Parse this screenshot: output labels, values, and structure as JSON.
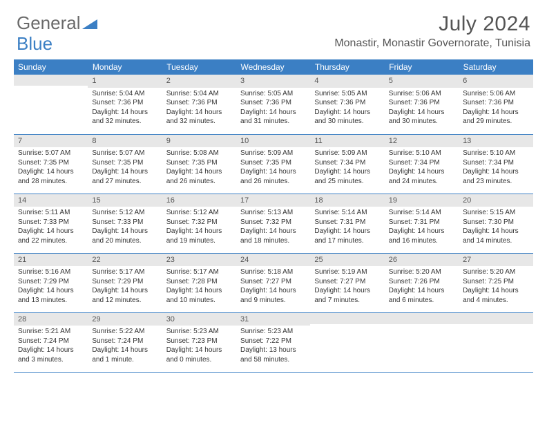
{
  "brand": {
    "part1": "General",
    "part2": "Blue"
  },
  "title": "July 2024",
  "location": "Monastir, Monastir Governorate, Tunisia",
  "accent_color": "#3b7fc4",
  "daynum_bg": "#e7e7e7",
  "weekdays": [
    "Sunday",
    "Monday",
    "Tuesday",
    "Wednesday",
    "Thursday",
    "Friday",
    "Saturday"
  ],
  "weeks": [
    [
      {
        "n": "",
        "sr": "",
        "ss": "",
        "dl": ""
      },
      {
        "n": "1",
        "sr": "Sunrise: 5:04 AM",
        "ss": "Sunset: 7:36 PM",
        "dl": "Daylight: 14 hours and 32 minutes."
      },
      {
        "n": "2",
        "sr": "Sunrise: 5:04 AM",
        "ss": "Sunset: 7:36 PM",
        "dl": "Daylight: 14 hours and 32 minutes."
      },
      {
        "n": "3",
        "sr": "Sunrise: 5:05 AM",
        "ss": "Sunset: 7:36 PM",
        "dl": "Daylight: 14 hours and 31 minutes."
      },
      {
        "n": "4",
        "sr": "Sunrise: 5:05 AM",
        "ss": "Sunset: 7:36 PM",
        "dl": "Daylight: 14 hours and 30 minutes."
      },
      {
        "n": "5",
        "sr": "Sunrise: 5:06 AM",
        "ss": "Sunset: 7:36 PM",
        "dl": "Daylight: 14 hours and 30 minutes."
      },
      {
        "n": "6",
        "sr": "Sunrise: 5:06 AM",
        "ss": "Sunset: 7:36 PM",
        "dl": "Daylight: 14 hours and 29 minutes."
      }
    ],
    [
      {
        "n": "7",
        "sr": "Sunrise: 5:07 AM",
        "ss": "Sunset: 7:35 PM",
        "dl": "Daylight: 14 hours and 28 minutes."
      },
      {
        "n": "8",
        "sr": "Sunrise: 5:07 AM",
        "ss": "Sunset: 7:35 PM",
        "dl": "Daylight: 14 hours and 27 minutes."
      },
      {
        "n": "9",
        "sr": "Sunrise: 5:08 AM",
        "ss": "Sunset: 7:35 PM",
        "dl": "Daylight: 14 hours and 26 minutes."
      },
      {
        "n": "10",
        "sr": "Sunrise: 5:09 AM",
        "ss": "Sunset: 7:35 PM",
        "dl": "Daylight: 14 hours and 26 minutes."
      },
      {
        "n": "11",
        "sr": "Sunrise: 5:09 AM",
        "ss": "Sunset: 7:34 PM",
        "dl": "Daylight: 14 hours and 25 minutes."
      },
      {
        "n": "12",
        "sr": "Sunrise: 5:10 AM",
        "ss": "Sunset: 7:34 PM",
        "dl": "Daylight: 14 hours and 24 minutes."
      },
      {
        "n": "13",
        "sr": "Sunrise: 5:10 AM",
        "ss": "Sunset: 7:34 PM",
        "dl": "Daylight: 14 hours and 23 minutes."
      }
    ],
    [
      {
        "n": "14",
        "sr": "Sunrise: 5:11 AM",
        "ss": "Sunset: 7:33 PM",
        "dl": "Daylight: 14 hours and 22 minutes."
      },
      {
        "n": "15",
        "sr": "Sunrise: 5:12 AM",
        "ss": "Sunset: 7:33 PM",
        "dl": "Daylight: 14 hours and 20 minutes."
      },
      {
        "n": "16",
        "sr": "Sunrise: 5:12 AM",
        "ss": "Sunset: 7:32 PM",
        "dl": "Daylight: 14 hours and 19 minutes."
      },
      {
        "n": "17",
        "sr": "Sunrise: 5:13 AM",
        "ss": "Sunset: 7:32 PM",
        "dl": "Daylight: 14 hours and 18 minutes."
      },
      {
        "n": "18",
        "sr": "Sunrise: 5:14 AM",
        "ss": "Sunset: 7:31 PM",
        "dl": "Daylight: 14 hours and 17 minutes."
      },
      {
        "n": "19",
        "sr": "Sunrise: 5:14 AM",
        "ss": "Sunset: 7:31 PM",
        "dl": "Daylight: 14 hours and 16 minutes."
      },
      {
        "n": "20",
        "sr": "Sunrise: 5:15 AM",
        "ss": "Sunset: 7:30 PM",
        "dl": "Daylight: 14 hours and 14 minutes."
      }
    ],
    [
      {
        "n": "21",
        "sr": "Sunrise: 5:16 AM",
        "ss": "Sunset: 7:29 PM",
        "dl": "Daylight: 14 hours and 13 minutes."
      },
      {
        "n": "22",
        "sr": "Sunrise: 5:17 AM",
        "ss": "Sunset: 7:29 PM",
        "dl": "Daylight: 14 hours and 12 minutes."
      },
      {
        "n": "23",
        "sr": "Sunrise: 5:17 AM",
        "ss": "Sunset: 7:28 PM",
        "dl": "Daylight: 14 hours and 10 minutes."
      },
      {
        "n": "24",
        "sr": "Sunrise: 5:18 AM",
        "ss": "Sunset: 7:27 PM",
        "dl": "Daylight: 14 hours and 9 minutes."
      },
      {
        "n": "25",
        "sr": "Sunrise: 5:19 AM",
        "ss": "Sunset: 7:27 PM",
        "dl": "Daylight: 14 hours and 7 minutes."
      },
      {
        "n": "26",
        "sr": "Sunrise: 5:20 AM",
        "ss": "Sunset: 7:26 PM",
        "dl": "Daylight: 14 hours and 6 minutes."
      },
      {
        "n": "27",
        "sr": "Sunrise: 5:20 AM",
        "ss": "Sunset: 7:25 PM",
        "dl": "Daylight: 14 hours and 4 minutes."
      }
    ],
    [
      {
        "n": "28",
        "sr": "Sunrise: 5:21 AM",
        "ss": "Sunset: 7:24 PM",
        "dl": "Daylight: 14 hours and 3 minutes."
      },
      {
        "n": "29",
        "sr": "Sunrise: 5:22 AM",
        "ss": "Sunset: 7:24 PM",
        "dl": "Daylight: 14 hours and 1 minute."
      },
      {
        "n": "30",
        "sr": "Sunrise: 5:23 AM",
        "ss": "Sunset: 7:23 PM",
        "dl": "Daylight: 14 hours and 0 minutes."
      },
      {
        "n": "31",
        "sr": "Sunrise: 5:23 AM",
        "ss": "Sunset: 7:22 PM",
        "dl": "Daylight: 13 hours and 58 minutes."
      },
      {
        "n": "",
        "sr": "",
        "ss": "",
        "dl": ""
      },
      {
        "n": "",
        "sr": "",
        "ss": "",
        "dl": ""
      },
      {
        "n": "",
        "sr": "",
        "ss": "",
        "dl": ""
      }
    ]
  ]
}
